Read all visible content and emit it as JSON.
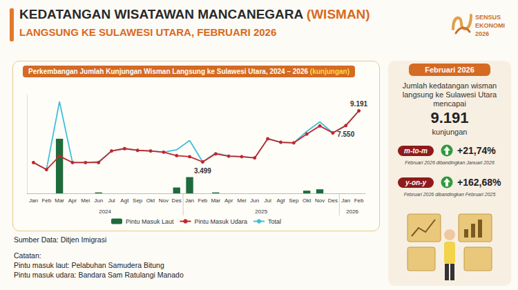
{
  "header": {
    "title_main": "KEDATANGAN WISATAWAN MANCANEGARA",
    "title_highlight": "(WISMAN)",
    "subtitle": "LANGSUNG KE SULAWESI UTARA, FEBRUARI 2026",
    "logo": [
      "SENSUS",
      "EKONOMI",
      "2026"
    ]
  },
  "chart_data": {
    "type": "bar",
    "title": "Perkembangan Jumlah Kunjungan Wisman Langsung ke Sulawesi Utara, 2024 – 2026",
    "unit": "(kunjungan)",
    "categories": [
      "Jan",
      "Feb",
      "Mar",
      "Apr",
      "Mei",
      "Jun",
      "Jul",
      "Agt",
      "Sep",
      "Okt",
      "Nov",
      "Des",
      "Jan",
      "Feb",
      "Mar",
      "Apr",
      "Mei",
      "Jun",
      "Jul",
      "Agt",
      "Sep",
      "Okt",
      "Nov",
      "Des",
      "Jan",
      "Feb"
    ],
    "years": [
      "2024",
      "2025",
      "2026"
    ],
    "series": [
      {
        "name": "Pintu Masuk Laut",
        "type": "bar",
        "color": "#1f6b3b",
        "values": [
          0,
          0,
          6080,
          0,
          0,
          100,
          0,
          0,
          0,
          0,
          0,
          650,
          1810,
          0,
          100,
          0,
          0,
          0,
          0,
          0,
          0,
          300,
          450,
          0,
          0,
          0
        ]
      },
      {
        "name": "Pintu Masuk Udara",
        "type": "line",
        "color": "#c0282d",
        "marker": "circle",
        "line_style": "solid",
        "values": [
          3430,
          2650,
          4140,
          3430,
          3430,
          3430,
          4720,
          4980,
          4790,
          4720,
          4590,
          4200,
          4080,
          3499,
          4400,
          4140,
          4080,
          3950,
          6080,
          5690,
          5630,
          6600,
          7510,
          6730,
          7550,
          9191
        ],
        "value_labels": [
          null,
          null,
          null,
          null,
          null,
          null,
          null,
          null,
          null,
          null,
          null,
          null,
          null,
          "3.499",
          null,
          null,
          null,
          null,
          null,
          null,
          null,
          null,
          null,
          null,
          "7.550",
          null
        ]
      },
      {
        "name": "Total",
        "type": "line",
        "color": "#3fbfd8",
        "marker": "none",
        "line_style": "solid",
        "values": [
          3430,
          2650,
          10220,
          3430,
          3430,
          3530,
          4720,
          4980,
          4790,
          4720,
          4590,
          4850,
          5890,
          3499,
          4500,
          4140,
          4080,
          3950,
          6080,
          5690,
          5630,
          6900,
          7960,
          6730,
          7550,
          9191
        ],
        "value_labels": [
          null,
          null,
          null,
          null,
          null,
          null,
          null,
          null,
          null,
          null,
          null,
          null,
          null,
          null,
          null,
          null,
          null,
          null,
          null,
          null,
          null,
          null,
          null,
          null,
          null,
          "9.191"
        ]
      }
    ],
    "ylim": [
      0,
      11000
    ],
    "tick_labels": "x",
    "grid": false,
    "legend": "bottom"
  },
  "side_panel": {
    "tab": "Februari 2026",
    "description": "Jumlah kedatangan wisman langsung ke Sulawesi Utara mencapai",
    "number": "9.191",
    "unit": "kunjungan",
    "comparisons": [
      {
        "badge": "m-to-m",
        "change": "+21,74%",
        "caption": "Februari 2026 dibandingkan Januari 2026"
      },
      {
        "badge": "y-on-y",
        "change": "+162,68%",
        "caption": "Februari 2026 dibandingkan Februari 2025"
      }
    ]
  },
  "notes": {
    "source": "Sumber Data: Ditjen Imigrasi",
    "heading": "Catatan:",
    "lines": [
      "Pintu masuk laut: Pelabuhan Samudera Bitung",
      "Pintu masuk udara: Bandara Sam Ratulangi Manado"
    ]
  }
}
